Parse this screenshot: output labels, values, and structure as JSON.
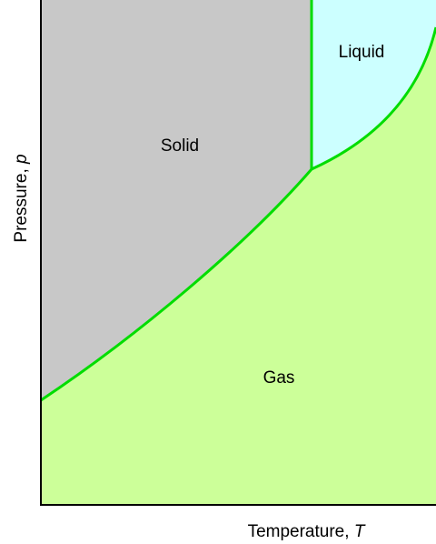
{
  "regions": {
    "solid": "Solid",
    "liquid": "Liquid",
    "gas": "Gas"
  },
  "axes": {
    "y_label": {
      "text": "Pressure, ",
      "variable": "p"
    },
    "x_label": {
      "text": "Temperature, ",
      "variable": "T"
    }
  }
}
